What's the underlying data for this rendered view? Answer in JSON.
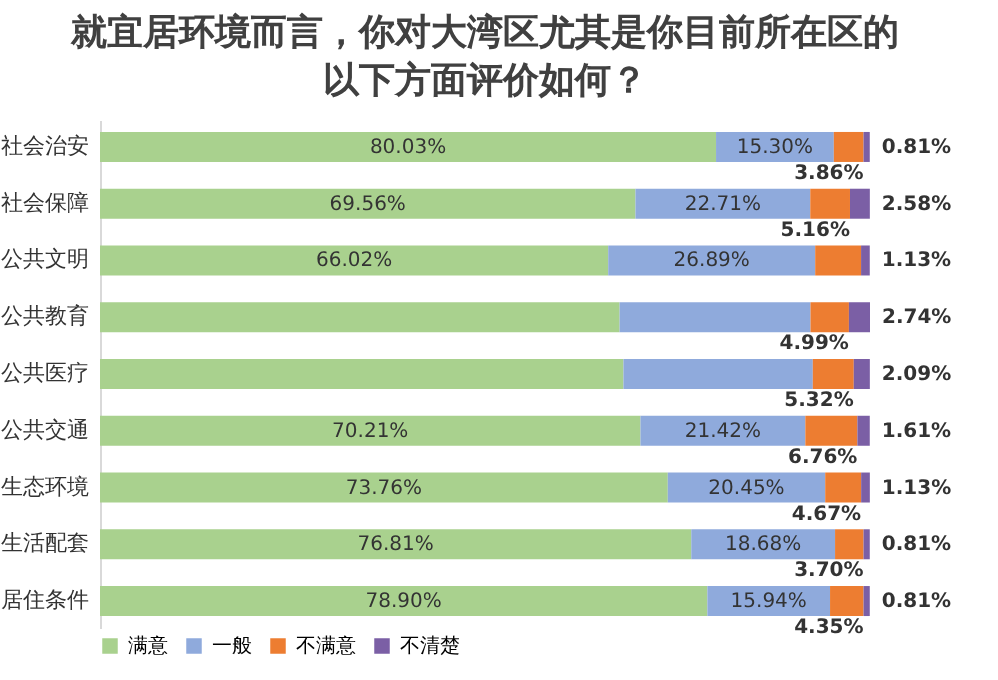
{
  "chart_data": {
    "type": "bar",
    "orientation": "horizontal",
    "stacked": true,
    "tick_labels": "y",
    "title": "就宜居环境而言，你对大湾区尤其是你目前所在区的以下方面评价如何？",
    "categories": [
      "社会治安",
      "社会保障",
      "公共文明",
      "公共教育",
      "公共医疗",
      "公共交通",
      "生态环境",
      "生活配套",
      "居住条件"
    ],
    "series": [
      {
        "name": "满意",
        "color": "#a9d18e",
        "values": [
          80.03,
          69.56,
          66.02,
          67.5,
          68.0,
          70.21,
          73.76,
          76.81,
          78.9
        ],
        "value_labels": [
          "80.03%",
          "69.56%",
          "66.02%",
          null,
          null,
          "70.21%",
          "73.76%",
          "76.81%",
          "78.90%"
        ]
      },
      {
        "name": "一般",
        "color": "#8faadc",
        "values": [
          15.3,
          22.71,
          26.89,
          24.8,
          24.6,
          21.42,
          20.45,
          18.68,
          15.94
        ],
        "value_labels": [
          "15.30%",
          "22.71%",
          "26.89%",
          null,
          null,
          "21.42%",
          "20.45%",
          "18.68%",
          "15.94%"
        ]
      },
      {
        "name": "不满意",
        "color": "#ed7d31",
        "values": [
          3.86,
          5.16,
          5.96,
          4.99,
          5.32,
          6.76,
          4.67,
          3.7,
          4.35
        ],
        "value_labels": [
          "3.86%",
          "5.16%",
          null,
          "4.99%",
          "5.32%",
          "6.76%",
          "4.67%",
          "3.70%",
          "4.35%"
        ]
      },
      {
        "name": "不清楚",
        "color": "#7b5fa5",
        "values": [
          0.81,
          2.58,
          1.13,
          2.74,
          2.09,
          1.61,
          1.13,
          0.81,
          0.81
        ],
        "value_labels": [
          "0.81%",
          "2.58%",
          "1.13%",
          "2.74%",
          "2.09%",
          "1.61%",
          "1.13%",
          "0.81%",
          "0.81%"
        ]
      }
    ],
    "legend": "bottom"
  }
}
